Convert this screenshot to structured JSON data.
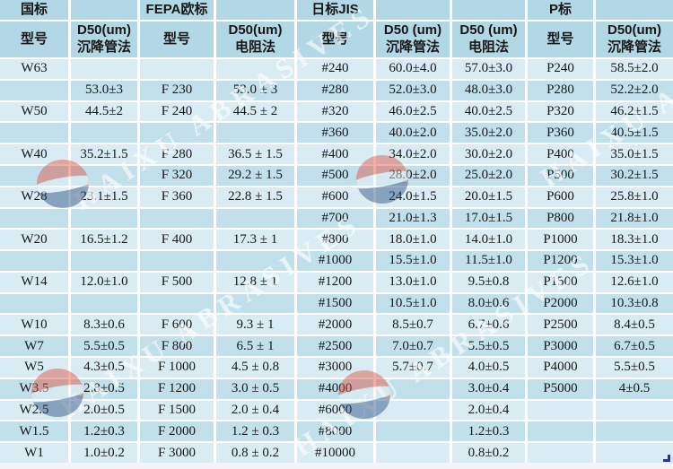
{
  "table": {
    "group_row": [
      "国标",
      "",
      "FEPA欧标",
      "",
      "日标JIS",
      "",
      "",
      "P标",
      ""
    ],
    "header_row": [
      "型号",
      "D50(um)\n沉降管法",
      "型号",
      "D50(um)\n电阻法",
      "型号",
      "D50 (um)\n沉降管法",
      "D50 (um)\n电阻法",
      "型号",
      "D50(um)\n沉降管法"
    ],
    "rows": [
      [
        "W63",
        "",
        "",
        "",
        "#240",
        "60.0±4.0",
        "57.0±3.0",
        "P240",
        "58.5±2.0"
      ],
      [
        "",
        "53.0±3",
        "F 230",
        "53.0 ± 3",
        "#280",
        "52.0±3.0",
        "48.0±3.0",
        "P280",
        "52.2±2.0"
      ],
      [
        "W50",
        "44.5±2",
        "F 240",
        "44.5 ± 2",
        "#320",
        "46.0±2.5",
        "40.0±2.5",
        "P320",
        "46.2±1.5"
      ],
      [
        "",
        "",
        "",
        "",
        "#360",
        "40.0±2.0",
        "35.0±2.0",
        "P360",
        "40.5±1.5"
      ],
      [
        "W40",
        "35.2±1.5",
        "F 280",
        "36.5 ± 1.5",
        "#400",
        "34.0±2.0",
        "30.0±2.0",
        "P400",
        "35.0±1.5"
      ],
      [
        "",
        "",
        "F 320",
        "29.2 ± 1.5",
        "#500",
        "28.0±2.0",
        "25.0±2.0",
        "P500",
        "30.2±1.5"
      ],
      [
        "W28",
        "23.1±1.5",
        "F 360",
        "22.8 ± 1.5",
        "#600",
        "24.0±1.5",
        "20.0±1.5",
        "P600",
        "25.8±1.0"
      ],
      [
        "",
        "",
        "",
        "",
        "#700",
        "21.0±1.3",
        "17.0±1.5",
        "P800",
        "21.8±1.0"
      ],
      [
        "W20",
        "16.5±1.2",
        "F 400",
        "17.3 ± 1",
        "#800",
        "18.0±1.0",
        "14.0±1.0",
        "P1000",
        "18.3±1.0"
      ],
      [
        "",
        "",
        "",
        "",
        "#1000",
        "15.5±1.0",
        "11.5±1.0",
        "P1200",
        "15.3±1.0"
      ],
      [
        "W14",
        "12.0±1.0",
        "F 500",
        "12.8 ± 1",
        "#1200",
        "13.0±1.0",
        "9.5±0.8",
        "P1500",
        "12.6±1.0"
      ],
      [
        "",
        "",
        "",
        "",
        "#1500",
        "10.5±1.0",
        "8.0±0.6",
        "P2000",
        "10.3±0.8"
      ],
      [
        "W10",
        "8.3±0.6",
        "F 600",
        "9.3 ± 1",
        "#2000",
        "8.5±0.7",
        "6.7±0.6",
        "P2500",
        "8.4±0.5"
      ],
      [
        "W7",
        "5.5±0.5",
        "F 800",
        "6.5 ± 1",
        "#2500",
        "7.0±0.7",
        "5.5±0.5",
        "P3000",
        "6.7±0.5"
      ],
      [
        "W5",
        "4.3±0.5",
        "F 1000",
        "4.5 ± 0.8",
        "#3000",
        "5.7±0.7",
        "4.0±0.5",
        "P4000",
        "5.5±0.5"
      ],
      [
        "W3.5",
        "2.8±0.5",
        "F 1200",
        "3.0 ± 0.5",
        "#4000",
        "",
        "3.0±0.4",
        "P5000",
        "4±0.5"
      ],
      [
        "W2.5",
        "2.0±0.5",
        "F 1500",
        "2.0 ± 0.4",
        "#6000",
        "",
        "2.0±0.4",
        "",
        ""
      ],
      [
        "W1.5",
        "1.2±0.3",
        "F 2000",
        "1.2 ± 0.3",
        "#8000",
        "",
        "1.2±0.3",
        "",
        ""
      ],
      [
        "W1",
        "1.0±0.2",
        "F 3000",
        "0.8 ± 0.2",
        "#10000",
        "",
        "0.8±0.2",
        "",
        ""
      ]
    ]
  },
  "watermark": {
    "text": "HAIXU ABRASIVES"
  },
  "colors": {
    "row_light": "#d9ecf4",
    "row_dark": "#c2e0eb",
    "header": "#b3d8e5",
    "grid_line": "#ffffff",
    "text": "#161616",
    "logo_red": "#dd4f3e",
    "logo_blue": "#24497f"
  }
}
